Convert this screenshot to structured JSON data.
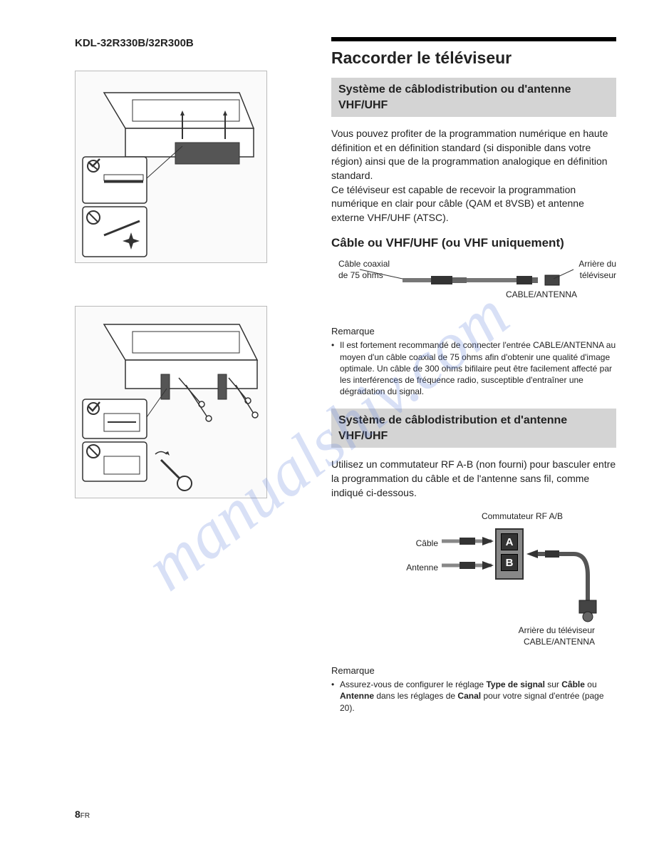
{
  "model": "KDL-32R330B/32R300B",
  "watermark": "manualshiv.com",
  "page_number": "8",
  "page_suffix": "FR",
  "main": {
    "title": "Raccorder le téléviseur",
    "section1": {
      "heading": "Système de câblodistribution ou d'antenne VHF/UHF",
      "para": "Vous pouvez profiter de la programmation numérique en haute définition et en définition standard (si disponible dans votre région) ainsi que de la programmation analogique en définition standard.\nCe téléviseur est capable de recevoir la programmation numérique en clair pour câble (QAM et 8VSB) et antenne externe VHF/UHF (ATSC)."
    },
    "section2": {
      "heading": "Câble ou VHF/UHF (ou VHF uniquement)",
      "diagram": {
        "left_label": "Câble coaxial\nde 75 ohms",
        "right_label": "Arrière du\ntéléviseur",
        "bottom_label": "CABLE/ANTENNA"
      },
      "remarque_label": "Remarque",
      "remarque_text": "Il est fortement recommandé de connecter l'entrée CABLE/ANTENNA au moyen d'un câble coaxial de 75 ohms afin d'obtenir une qualité d'image optimale. Un câble de 300 ohms bifilaire peut être facilement affecté par les interférences de fréquence radio, susceptible d'entraîner une dégradation du signal."
    },
    "section3": {
      "heading": "Système de câblodistribution et d'antenne VHF/UHF",
      "para": "Utilisez un commutateur RF A-B (non fourni) pour basculer entre la programmation du câble et de l'antenne sans fil, comme indiqué ci-dessous.",
      "diagram": {
        "top_label": "Commutateur RF A/B",
        "cable_label": "Câble",
        "antenne_label": "Antenne",
        "btn_a": "A",
        "btn_b": "B",
        "bottom_label": "Arrière du téléviseur\nCABLE/ANTENNA"
      },
      "remarque_label": "Remarque",
      "remarque_html": "Assurez-vous de configurer le réglage <b>Type de signal</b> sur <b>Câble</b> ou <b>Antenne</b> dans les réglages de <b>Canal</b> pour votre signal d'entrée (page 20)."
    }
  },
  "colors": {
    "text": "#222222",
    "greybox": "#d4d4d4",
    "watermark": "rgba(100,130,220,0.25)"
  }
}
